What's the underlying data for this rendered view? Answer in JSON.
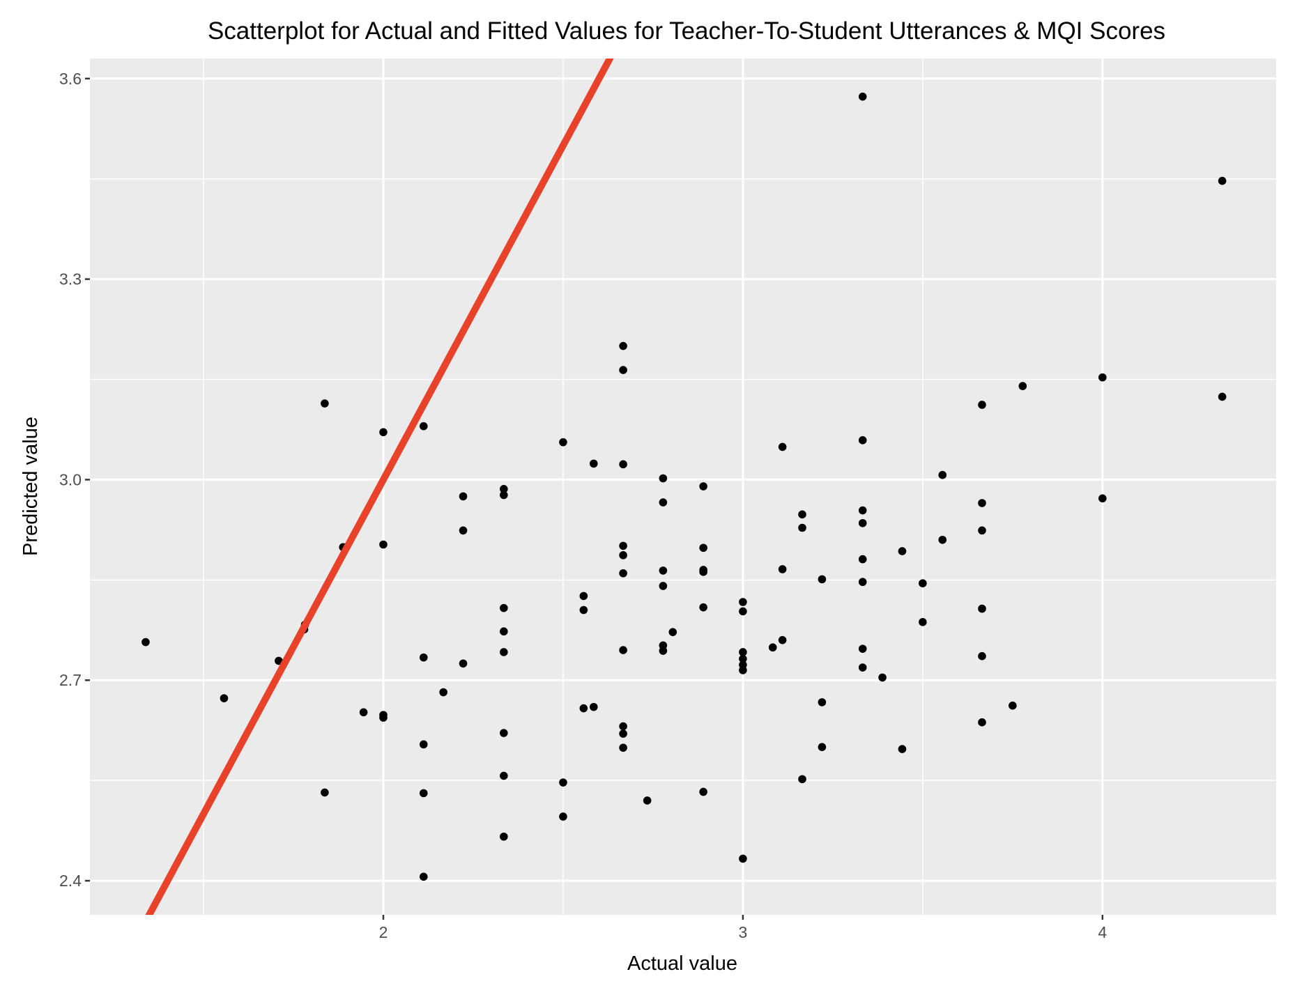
{
  "chart_data": {
    "type": "scatter",
    "title": "Scatterplot for Actual and Fitted Values for Teacher-To-Student Utterances & MQI Scores",
    "xlabel": "Actual value",
    "ylabel": "Predicted value",
    "xlim": [
      1.184,
      4.483
    ],
    "ylim": [
      2.349,
      3.63
    ],
    "x_ticks": [
      2,
      3,
      4
    ],
    "x_tick_labels": [
      "2",
      "3",
      "4"
    ],
    "x_minor_ticks": [
      1.5,
      2.5,
      3.5
    ],
    "y_ticks": [
      2.4,
      2.7,
      3.0,
      3.3,
      3.6
    ],
    "y_tick_labels": [
      "2.4",
      "2.7",
      "3.0",
      "3.3",
      "3.6"
    ],
    "y_minor_ticks": [
      2.55,
      2.85,
      3.15,
      3.45
    ],
    "grid": true,
    "legend": null,
    "reference_line": {
      "type": "abline",
      "slope": 1.0,
      "intercept": 1.0,
      "color": "#E8432A"
    },
    "point_color": "#000000",
    "panel_background": "#EBEBEB",
    "points": [
      [
        1.339,
        2.757
      ],
      [
        1.557,
        2.673
      ],
      [
        1.709,
        2.729
      ],
      [
        1.78,
        2.776
      ],
      [
        1.782,
        2.783
      ],
      [
        1.837,
        3.114
      ],
      [
        1.837,
        2.532
      ],
      [
        1.888,
        2.899
      ],
      [
        1.945,
        2.652
      ],
      [
        2.0,
        3.071
      ],
      [
        2.0,
        2.903
      ],
      [
        2.0,
        2.648
      ],
      [
        2.0,
        2.644
      ],
      [
        2.112,
        3.08
      ],
      [
        2.112,
        2.734
      ],
      [
        2.112,
        2.604
      ],
      [
        2.112,
        2.531
      ],
      [
        2.112,
        2.406
      ],
      [
        2.167,
        2.682
      ],
      [
        2.222,
        2.975
      ],
      [
        2.222,
        2.924
      ],
      [
        2.222,
        2.725
      ],
      [
        2.335,
        2.986
      ],
      [
        2.335,
        2.977
      ],
      [
        2.335,
        2.808
      ],
      [
        2.335,
        2.773
      ],
      [
        2.335,
        2.742
      ],
      [
        2.335,
        2.621
      ],
      [
        2.335,
        2.557
      ],
      [
        2.335,
        2.466
      ],
      [
        2.5,
        3.056
      ],
      [
        2.5,
        2.547
      ],
      [
        2.5,
        2.496
      ],
      [
        2.557,
        2.826
      ],
      [
        2.557,
        2.805
      ],
      [
        2.557,
        2.658
      ],
      [
        2.585,
        3.024
      ],
      [
        2.585,
        2.66
      ],
      [
        2.667,
        3.2
      ],
      [
        2.667,
        3.164
      ],
      [
        2.667,
        3.023
      ],
      [
        2.667,
        2.901
      ],
      [
        2.667,
        2.887
      ],
      [
        2.667,
        2.86
      ],
      [
        2.667,
        2.745
      ],
      [
        2.667,
        2.631
      ],
      [
        2.667,
        2.62
      ],
      [
        2.667,
        2.599
      ],
      [
        2.734,
        2.52
      ],
      [
        2.778,
        3.002
      ],
      [
        2.778,
        2.966
      ],
      [
        2.778,
        2.864
      ],
      [
        2.778,
        2.841
      ],
      [
        2.778,
        2.752
      ],
      [
        2.778,
        2.744
      ],
      [
        2.805,
        2.772
      ],
      [
        2.89,
        2.99
      ],
      [
        2.89,
        2.898
      ],
      [
        2.89,
        2.865
      ],
      [
        2.89,
        2.862
      ],
      [
        2.89,
        2.809
      ],
      [
        2.89,
        2.533
      ],
      [
        3.0,
        2.817
      ],
      [
        3.0,
        2.803
      ],
      [
        3.0,
        2.742
      ],
      [
        3.0,
        2.732
      ],
      [
        3.0,
        2.723
      ],
      [
        3.0,
        2.715
      ],
      [
        3.0,
        2.433
      ],
      [
        3.083,
        2.749
      ],
      [
        3.11,
        3.049
      ],
      [
        3.11,
        2.866
      ],
      [
        3.11,
        2.76
      ],
      [
        3.165,
        2.948
      ],
      [
        3.165,
        2.928
      ],
      [
        3.165,
        2.552
      ],
      [
        3.22,
        2.851
      ],
      [
        3.22,
        2.667
      ],
      [
        3.22,
        2.6
      ],
      [
        3.333,
        3.573
      ],
      [
        3.333,
        3.059
      ],
      [
        3.333,
        2.954
      ],
      [
        3.333,
        2.935
      ],
      [
        3.333,
        2.881
      ],
      [
        3.333,
        2.847
      ],
      [
        3.333,
        2.747
      ],
      [
        3.333,
        2.719
      ],
      [
        3.388,
        2.704
      ],
      [
        3.443,
        2.893
      ],
      [
        3.443,
        2.597
      ],
      [
        3.5,
        2.845
      ],
      [
        3.5,
        2.787
      ],
      [
        3.555,
        3.007
      ],
      [
        3.555,
        2.91
      ],
      [
        3.665,
        3.112
      ],
      [
        3.665,
        2.965
      ],
      [
        3.665,
        2.924
      ],
      [
        3.665,
        2.807
      ],
      [
        3.665,
        2.736
      ],
      [
        3.665,
        2.637
      ],
      [
        3.75,
        2.662
      ],
      [
        3.778,
        3.14
      ],
      [
        4.0,
        3.153
      ],
      [
        4.0,
        2.972
      ],
      [
        4.333,
        3.447
      ],
      [
        4.333,
        3.124
      ]
    ]
  }
}
